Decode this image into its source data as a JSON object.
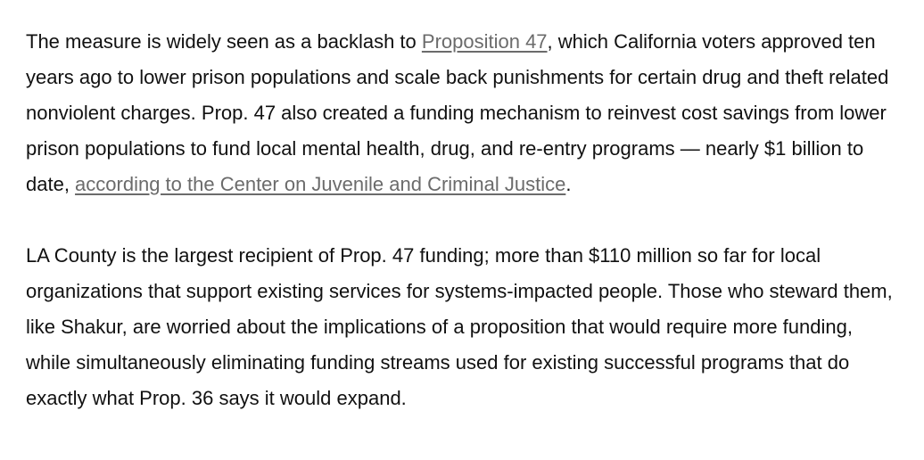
{
  "paragraphs": [
    {
      "segments": [
        {
          "text": "The measure is widely seen as a backlash to "
        },
        {
          "text": "Proposition 47",
          "link": true
        },
        {
          "text": ", which California voters approved ten years ago to lower prison populations and scale back punishments for certain drug and theft related nonviolent charges. Prop. 47 also created a funding mechanism to reinvest cost savings from lower prison populations to fund local mental health, drug, and re-entry programs — nearly $1 billion to date, "
        },
        {
          "text": "according to the Center on Juvenile and Criminal Justice",
          "link": true
        },
        {
          "text": "."
        }
      ]
    },
    {
      "segments": [
        {
          "text": "LA County is the largest recipient of Prop. 47 funding; more than $110 million so far for local organizations that support existing services for systems-impacted people. Those who steward them, like Shakur, are worried about the implications of a proposition that would require more funding, while simultaneously eliminating funding streams used for existing successful programs that do exactly what Prop. 36 says it would expand."
        }
      ]
    }
  ]
}
